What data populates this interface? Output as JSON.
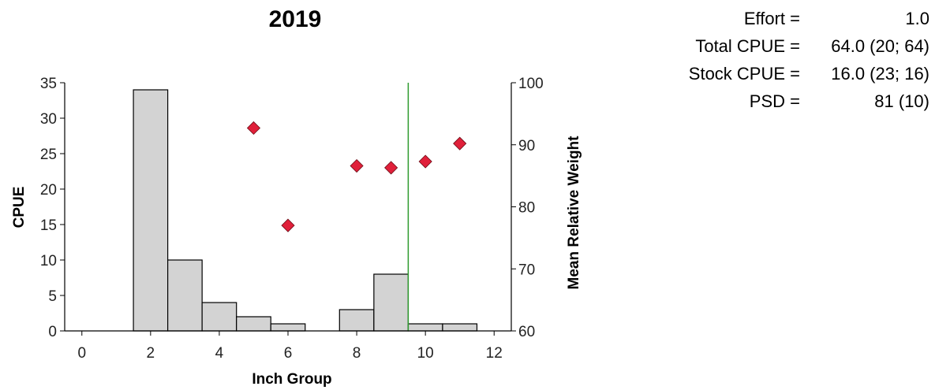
{
  "chart_data": {
    "type": "bar",
    "title": "2019",
    "xlabel": "Inch Group",
    "ylabel": "CPUE",
    "y2label": "Mean Relative Weight",
    "xlim": [
      -0.5,
      12.5
    ],
    "ylim": [
      0,
      35
    ],
    "y2lim": [
      60,
      100
    ],
    "xticks": [
      "0",
      "2",
      "4",
      "6",
      "8",
      "10",
      "12"
    ],
    "yticks": [
      "0",
      "5",
      "10",
      "15",
      "20",
      "25",
      "30",
      "35"
    ],
    "y2ticks": [
      "60",
      "70",
      "80",
      "90",
      "100"
    ],
    "bars": {
      "name": "CPUE",
      "x": [
        2,
        3,
        4,
        5,
        6,
        8,
        9,
        10,
        11
      ],
      "values": [
        34,
        10,
        4,
        2,
        1,
        3,
        8,
        1,
        1
      ]
    },
    "markers": {
      "name": "Mean Relative Weight",
      "axis": "right",
      "x": [
        5,
        6,
        8,
        9,
        10,
        11
      ],
      "values": [
        92.7,
        77.0,
        86.6,
        86.3,
        87.3,
        90.2
      ]
    },
    "vline": {
      "x": 9.5,
      "color": "#2e9a2e"
    },
    "colors": {
      "bar_fill": "#d3d3d3",
      "bar_stroke": "#000000",
      "marker": "#e0203a",
      "axis": "#000000"
    },
    "grid": false,
    "legend": "none"
  },
  "stats": [
    {
      "label": "Effort =",
      "value": "1.0"
    },
    {
      "label": "Total CPUE =",
      "value": "64.0 (20; 64)"
    },
    {
      "label": "Stock CPUE =",
      "value": "16.0 (23; 16)"
    },
    {
      "label": "PSD =",
      "value": "81 (10)"
    }
  ]
}
